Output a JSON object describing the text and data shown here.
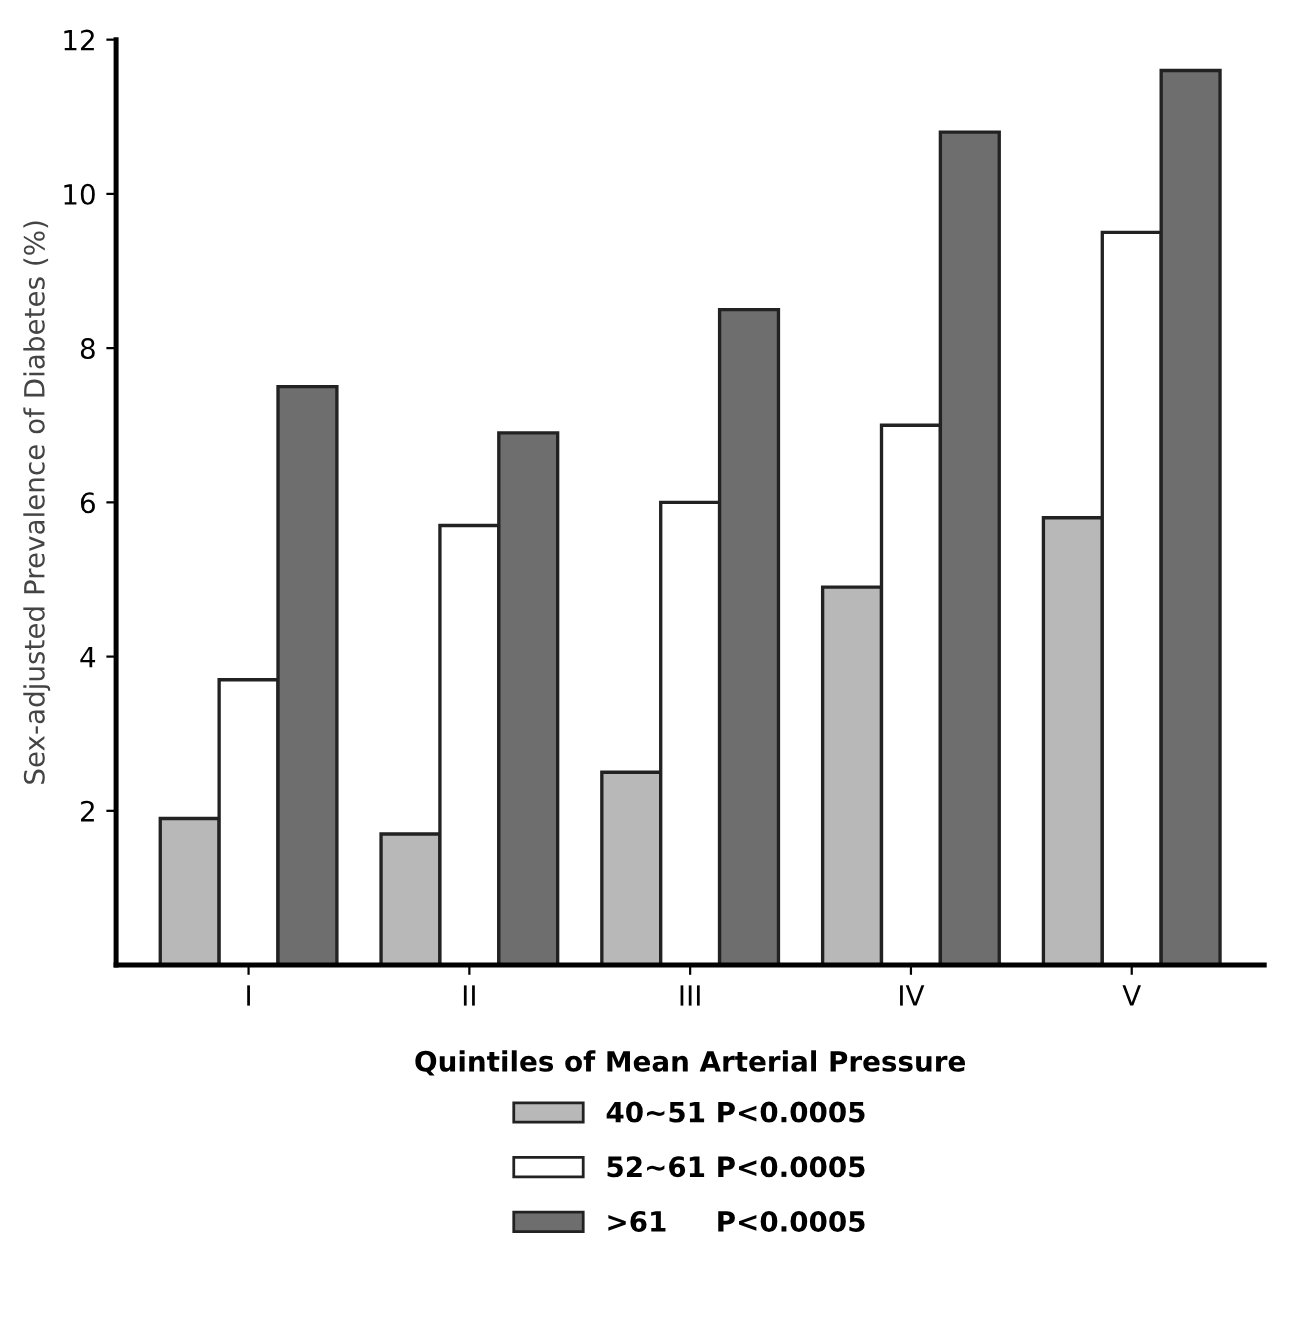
{
  "chart_data": {
    "type": "bar",
    "xlabel": "Quintiles of Mean Arterial Pressure",
    "ylabel": "Sex-adjusted Prevalence of Diabetes (%)",
    "categories": [
      "I",
      "II",
      "III",
      "IV",
      "V"
    ],
    "series": [
      {
        "name": "40~51 P<0.0005",
        "color": "#b8b8b8",
        "values": [
          1.9,
          1.7,
          2.5,
          4.9,
          5.8
        ]
      },
      {
        "name": "52~61 P<0.0005",
        "color": "#ffffff",
        "values": [
          3.7,
          5.7,
          6.0,
          7.0,
          9.5
        ]
      },
      {
        "name": ">61     P<0.0005",
        "color": "#6e6e6e",
        "values": [
          7.5,
          6.9,
          8.5,
          10.8,
          11.6
        ]
      }
    ],
    "ylim": [
      0,
      12
    ],
    "yticks": [
      2,
      4,
      6,
      8,
      10,
      12
    ],
    "grid": false,
    "legend": "bottom"
  }
}
